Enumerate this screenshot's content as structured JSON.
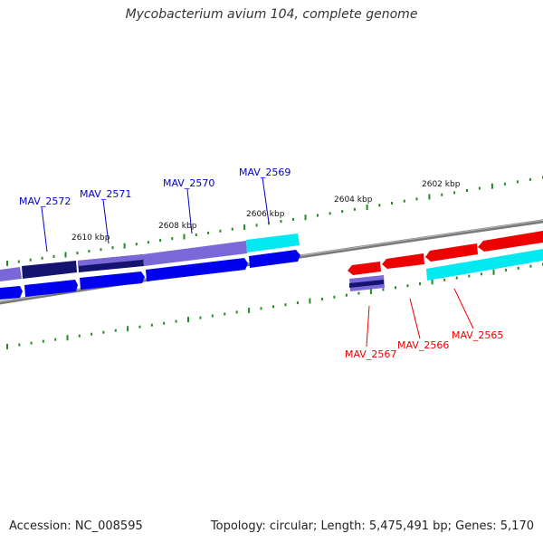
{
  "title": "Mycobacterium avium 104, complete genome",
  "accession": "Accession: NC_008595",
  "summary": "Topology: circular; Length: 5,475,491 bp; Genes: 5,170",
  "colors": {
    "forward_gene": "#0000ee",
    "reverse_gene": "#ee0000",
    "cds_purple": "#7b68d8",
    "cds_navy": "#141470",
    "cds_cyan": "#00e8f0",
    "backbone": "#888888",
    "tick": "#228b22"
  },
  "tick_labels": [
    "2610 kbp",
    "2608 kbp",
    "2606 kbp",
    "2604 kbp",
    "2602 kbp"
  ],
  "gene_labels": [
    {
      "name": "MAV_2572",
      "strand": "forward"
    },
    {
      "name": "MAV_2571",
      "strand": "forward"
    },
    {
      "name": "MAV_2570",
      "strand": "forward"
    },
    {
      "name": "MAV_2569",
      "strand": "forward"
    },
    {
      "name": "MAV_2567",
      "strand": "reverse"
    },
    {
      "name": "MAV_2566",
      "strand": "reverse"
    },
    {
      "name": "MAV_2565",
      "strand": "reverse"
    }
  ]
}
